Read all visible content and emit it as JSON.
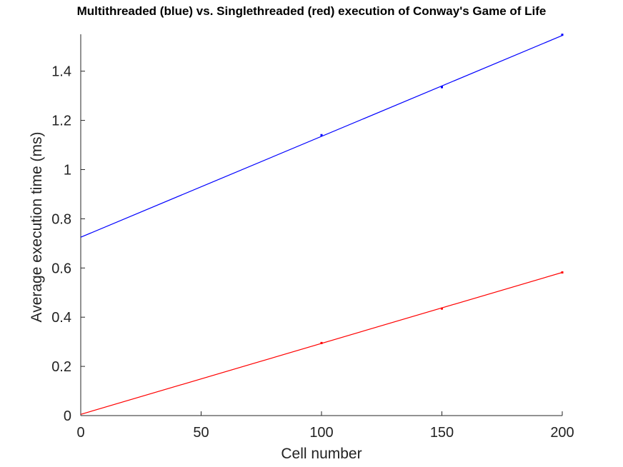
{
  "chart_data": {
    "type": "line",
    "title": "Multithreaded (blue) vs. Singlethreaded (red) execution of Conway's Game of Life",
    "xlabel": "Cell number",
    "ylabel": "Average execution time (ms)",
    "xlim": [
      0,
      200
    ],
    "ylim": [
      0,
      1.55
    ],
    "xticks": [
      0,
      50,
      100,
      150,
      200
    ],
    "yticks": [
      0,
      0.2,
      0.4,
      0.6,
      0.8,
      1,
      1.2,
      1.4
    ],
    "grid": false,
    "series": [
      {
        "color": "#0000ff",
        "points": [
          {
            "x": 100,
            "y": 1.14
          },
          {
            "x": 150,
            "y": 1.335
          },
          {
            "x": 200,
            "y": 1.548
          }
        ],
        "fit": [
          {
            "x": 0,
            "y": 0.725
          },
          {
            "x": 200,
            "y": 1.545
          }
        ]
      },
      {
        "color": "#ff0000",
        "points": [
          {
            "x": 100,
            "y": 0.295
          },
          {
            "x": 150,
            "y": 0.435
          },
          {
            "x": 200,
            "y": 0.582
          }
        ],
        "fit": [
          {
            "x": 0,
            "y": 0.005
          },
          {
            "x": 200,
            "y": 0.582
          }
        ]
      }
    ]
  }
}
